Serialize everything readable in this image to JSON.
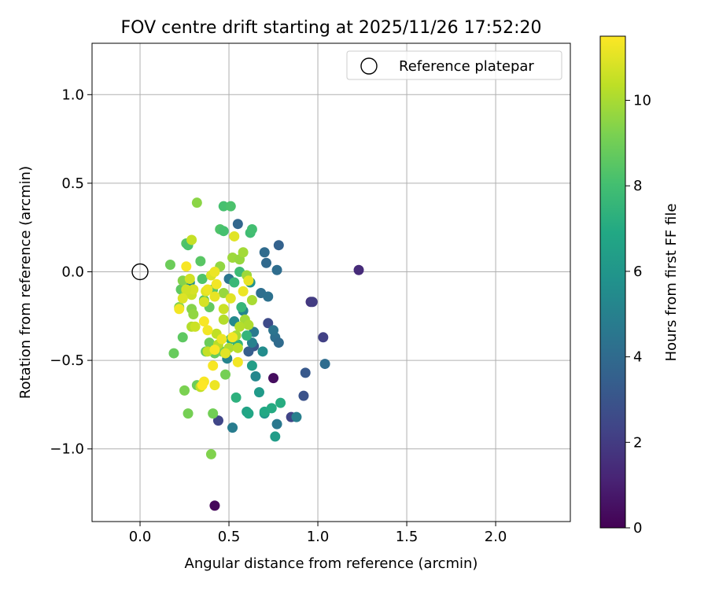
{
  "chart_data": {
    "type": "scatter",
    "title": "FOV centre drift starting at 2025/11/26 17:52:20",
    "xlabel": "Angular distance from reference (arcmin)",
    "ylabel": "Rotation from reference (arcmin)",
    "xlim": [
      -0.27,
      2.42
    ],
    "ylim": [
      -1.41,
      1.29
    ],
    "xticks": [
      0.0,
      0.5,
      1.0,
      1.5,
      2.0
    ],
    "xtick_labels": [
      "0.0",
      "0.5",
      "1.0",
      "1.5",
      "2.0"
    ],
    "yticks": [
      -1.0,
      -0.5,
      0.0,
      0.5,
      1.0
    ],
    "ytick_labels": [
      "−1.0",
      "−0.5",
      "0.0",
      "0.5",
      "1.0"
    ],
    "grid": true,
    "legend": {
      "position": "top-right",
      "label": "Reference platepar"
    },
    "reference_point": {
      "x": 0.0,
      "y": 0.0
    },
    "colorbar": {
      "label": "Hours from first FF file",
      "range": [
        0,
        11.5
      ],
      "ticks": [
        0,
        2,
        4,
        6,
        8,
        10
      ],
      "tick_labels": [
        "0",
        "2",
        "4",
        "6",
        "8",
        "10"
      ],
      "colormap": "viridis"
    },
    "points": [
      {
        "x": 0.42,
        "y": -1.32,
        "h": 0.2
      },
      {
        "x": 0.75,
        "y": -0.6,
        "h": 0.4
      },
      {
        "x": 1.23,
        "y": 0.01,
        "h": 1.4
      },
      {
        "x": 0.96,
        "y": -0.17,
        "h": 1.8
      },
      {
        "x": 0.97,
        "y": -0.17,
        "h": 2.0
      },
      {
        "x": 1.03,
        "y": -0.37,
        "h": 2.2
      },
      {
        "x": 0.85,
        "y": -0.82,
        "h": 2.3
      },
      {
        "x": 0.44,
        "y": -0.84,
        "h": 2.4
      },
      {
        "x": 0.72,
        "y": -0.29,
        "h": 2.6
      },
      {
        "x": 0.92,
        "y": -0.7,
        "h": 2.9
      },
      {
        "x": 0.93,
        "y": -0.57,
        "h": 3.2
      },
      {
        "x": 0.64,
        "y": -0.42,
        "h": 3.1
      },
      {
        "x": 0.61,
        "y": -0.45,
        "h": 3.4
      },
      {
        "x": 0.55,
        "y": 0.27,
        "h": 3.8
      },
      {
        "x": 0.78,
        "y": 0.15,
        "h": 3.6
      },
      {
        "x": 0.71,
        "y": 0.05,
        "h": 3.9
      },
      {
        "x": 0.7,
        "y": 0.11,
        "h": 4.0
      },
      {
        "x": 0.77,
        "y": 0.01,
        "h": 4.1
      },
      {
        "x": 0.68,
        "y": -0.12,
        "h": 4.2
      },
      {
        "x": 0.72,
        "y": -0.14,
        "h": 4.3
      },
      {
        "x": 0.76,
        "y": -0.37,
        "h": 4.2
      },
      {
        "x": 0.78,
        "y": -0.4,
        "h": 4.0
      },
      {
        "x": 0.75,
        "y": -0.33,
        "h": 4.4
      },
      {
        "x": 1.04,
        "y": -0.52,
        "h": 4.1
      },
      {
        "x": 0.5,
        "y": -0.04,
        "h": 4.5
      },
      {
        "x": 0.52,
        "y": -0.88,
        "h": 4.8
      },
      {
        "x": 0.77,
        "y": -0.86,
        "h": 4.6
      },
      {
        "x": 0.88,
        "y": -0.82,
        "h": 4.9
      },
      {
        "x": 0.64,
        "y": -0.34,
        "h": 4.7
      },
      {
        "x": 0.63,
        "y": -0.4,
        "h": 5.0
      },
      {
        "x": 0.49,
        "y": -0.49,
        "h": 5.1
      },
      {
        "x": 0.58,
        "y": -0.22,
        "h": 5.2
      },
      {
        "x": 0.53,
        "y": -0.28,
        "h": 5.4
      },
      {
        "x": 0.65,
        "y": -0.59,
        "h": 5.3
      },
      {
        "x": 0.69,
        "y": -0.45,
        "h": 5.5
      },
      {
        "x": 0.28,
        "y": -0.06,
        "h": 5.6
      },
      {
        "x": 0.62,
        "y": -0.06,
        "h": 5.8
      },
      {
        "x": 0.7,
        "y": -0.8,
        "h": 6.0
      },
      {
        "x": 0.67,
        "y": -0.68,
        "h": 6.2
      },
      {
        "x": 0.76,
        "y": -0.93,
        "h": 6.3
      },
      {
        "x": 0.63,
        "y": -0.53,
        "h": 6.4
      },
      {
        "x": 0.6,
        "y": -0.79,
        "h": 6.6
      },
      {
        "x": 0.61,
        "y": -0.8,
        "h": 6.8
      },
      {
        "x": 0.7,
        "y": -0.79,
        "h": 6.9
      },
      {
        "x": 0.74,
        "y": -0.77,
        "h": 7.0
      },
      {
        "x": 0.79,
        "y": -0.74,
        "h": 7.1
      },
      {
        "x": 0.54,
        "y": -0.71,
        "h": 7.3
      },
      {
        "x": 0.51,
        "y": -0.38,
        "h": 7.2
      },
      {
        "x": 0.55,
        "y": -0.41,
        "h": 7.4
      },
      {
        "x": 0.6,
        "y": -0.36,
        "h": 7.5
      },
      {
        "x": 0.57,
        "y": -0.2,
        "h": 7.6
      },
      {
        "x": 0.53,
        "y": -0.06,
        "h": 7.7
      },
      {
        "x": 0.56,
        "y": 0.0,
        "h": 7.8
      },
      {
        "x": 0.62,
        "y": 0.22,
        "h": 7.9
      },
      {
        "x": 0.63,
        "y": 0.24,
        "h": 8.0
      },
      {
        "x": 0.47,
        "y": 0.37,
        "h": 8.1
      },
      {
        "x": 0.51,
        "y": 0.37,
        "h": 8.2
      },
      {
        "x": 0.45,
        "y": 0.24,
        "h": 8.3
      },
      {
        "x": 0.47,
        "y": 0.23,
        "h": 8.1
      },
      {
        "x": 0.26,
        "y": 0.16,
        "h": 8.4
      },
      {
        "x": 0.27,
        "y": 0.15,
        "h": 8.2
      },
      {
        "x": 0.34,
        "y": 0.06,
        "h": 8.5
      },
      {
        "x": 0.35,
        "y": -0.04,
        "h": 8.3
      },
      {
        "x": 0.23,
        "y": -0.1,
        "h": 8.6
      },
      {
        "x": 0.36,
        "y": -0.16,
        "h": 8.4
      },
      {
        "x": 0.39,
        "y": -0.2,
        "h": 8.7
      },
      {
        "x": 0.41,
        "y": -0.1,
        "h": 8.5
      },
      {
        "x": 0.24,
        "y": -0.37,
        "h": 8.6
      },
      {
        "x": 0.19,
        "y": -0.46,
        "h": 8.8
      },
      {
        "x": 0.37,
        "y": -0.45,
        "h": 8.7
      },
      {
        "x": 0.39,
        "y": -0.4,
        "h": 8.9
      },
      {
        "x": 0.42,
        "y": -0.46,
        "h": 8.8
      },
      {
        "x": 0.46,
        "y": -0.45,
        "h": 9.0
      },
      {
        "x": 0.48,
        "y": -0.58,
        "h": 9.1
      },
      {
        "x": 0.32,
        "y": -0.64,
        "h": 8.9
      },
      {
        "x": 0.25,
        "y": -0.67,
        "h": 9.2
      },
      {
        "x": 0.27,
        "y": -0.8,
        "h": 9.1
      },
      {
        "x": 0.41,
        "y": -0.8,
        "h": 9.0
      },
      {
        "x": 0.4,
        "y": -1.03,
        "h": 9.3
      },
      {
        "x": 0.17,
        "y": 0.04,
        "h": 8.9
      },
      {
        "x": 0.24,
        "y": -0.05,
        "h": 9.4
      },
      {
        "x": 0.22,
        "y": -0.2,
        "h": 9.3
      },
      {
        "x": 0.26,
        "y": -0.12,
        "h": 9.5
      },
      {
        "x": 0.29,
        "y": -0.21,
        "h": 9.4
      },
      {
        "x": 0.3,
        "y": -0.24,
        "h": 9.6
      },
      {
        "x": 0.32,
        "y": 0.39,
        "h": 9.5
      },
      {
        "x": 0.45,
        "y": 0.03,
        "h": 9.6
      },
      {
        "x": 0.47,
        "y": -0.12,
        "h": 9.7
      },
      {
        "x": 0.52,
        "y": 0.08,
        "h": 9.8
      },
      {
        "x": 0.56,
        "y": 0.07,
        "h": 9.7
      },
      {
        "x": 0.58,
        "y": 0.11,
        "h": 9.9
      },
      {
        "x": 0.6,
        "y": -0.02,
        "h": 9.8
      },
      {
        "x": 0.63,
        "y": -0.16,
        "h": 10.0
      },
      {
        "x": 0.59,
        "y": -0.27,
        "h": 9.9
      },
      {
        "x": 0.61,
        "y": -0.3,
        "h": 10.1
      },
      {
        "x": 0.54,
        "y": -0.36,
        "h": 10.0
      },
      {
        "x": 0.56,
        "y": -0.31,
        "h": 10.2
      },
      {
        "x": 0.5,
        "y": -0.43,
        "h": 10.1
      },
      {
        "x": 0.55,
        "y": -0.43,
        "h": 10.3
      },
      {
        "x": 0.47,
        "y": -0.27,
        "h": 10.2
      },
      {
        "x": 0.43,
        "y": -0.35,
        "h": 10.4
      },
      {
        "x": 0.44,
        "y": -0.41,
        "h": 10.3
      },
      {
        "x": 0.38,
        "y": -0.45,
        "h": 10.5
      },
      {
        "x": 0.34,
        "y": -0.65,
        "h": 10.4
      },
      {
        "x": 0.29,
        "y": -0.31,
        "h": 10.2
      },
      {
        "x": 0.31,
        "y": -0.31,
        "h": 10.6
      },
      {
        "x": 0.29,
        "y": 0.18,
        "h": 10.5
      },
      {
        "x": 0.28,
        "y": -0.04,
        "h": 10.7
      },
      {
        "x": 0.29,
        "y": -0.13,
        "h": 10.6
      },
      {
        "x": 0.3,
        "y": -0.1,
        "h": 10.8
      },
      {
        "x": 0.26,
        "y": -0.1,
        "h": 10.7
      },
      {
        "x": 0.24,
        "y": -0.15,
        "h": 10.9
      },
      {
        "x": 0.36,
        "y": -0.17,
        "h": 10.8
      },
      {
        "x": 0.37,
        "y": -0.11,
        "h": 11.0
      },
      {
        "x": 0.4,
        "y": -0.02,
        "h": 10.9
      },
      {
        "x": 0.42,
        "y": -0.14,
        "h": 11.1
      },
      {
        "x": 0.47,
        "y": -0.21,
        "h": 10.6
      },
      {
        "x": 0.51,
        "y": -0.15,
        "h": 11.0
      },
      {
        "x": 0.58,
        "y": -0.11,
        "h": 11.2
      },
      {
        "x": 0.61,
        "y": -0.05,
        "h": 11.1
      },
      {
        "x": 0.53,
        "y": 0.2,
        "h": 11.0
      },
      {
        "x": 0.38,
        "y": -0.1,
        "h": 11.2
      },
      {
        "x": 0.43,
        "y": -0.07,
        "h": 11.3
      },
      {
        "x": 0.42,
        "y": 0.0,
        "h": 11.2
      },
      {
        "x": 0.26,
        "y": 0.03,
        "h": 11.4
      },
      {
        "x": 0.22,
        "y": -0.21,
        "h": 11.3
      },
      {
        "x": 0.36,
        "y": -0.28,
        "h": 11.4
      },
      {
        "x": 0.38,
        "y": -0.33,
        "h": 11.3
      },
      {
        "x": 0.42,
        "y": -0.44,
        "h": 11.4
      },
      {
        "x": 0.46,
        "y": -0.38,
        "h": 11.2
      },
      {
        "x": 0.52,
        "y": -0.37,
        "h": 11.3
      },
      {
        "x": 0.41,
        "y": -0.53,
        "h": 11.4
      },
      {
        "x": 0.55,
        "y": -0.51,
        "h": 11.3
      },
      {
        "x": 0.36,
        "y": -0.62,
        "h": 11.4
      },
      {
        "x": 0.35,
        "y": -0.64,
        "h": 11.5
      },
      {
        "x": 0.42,
        "y": -0.64,
        "h": 11.2
      },
      {
        "x": 0.48,
        "y": -0.46,
        "h": 11.0
      }
    ]
  }
}
